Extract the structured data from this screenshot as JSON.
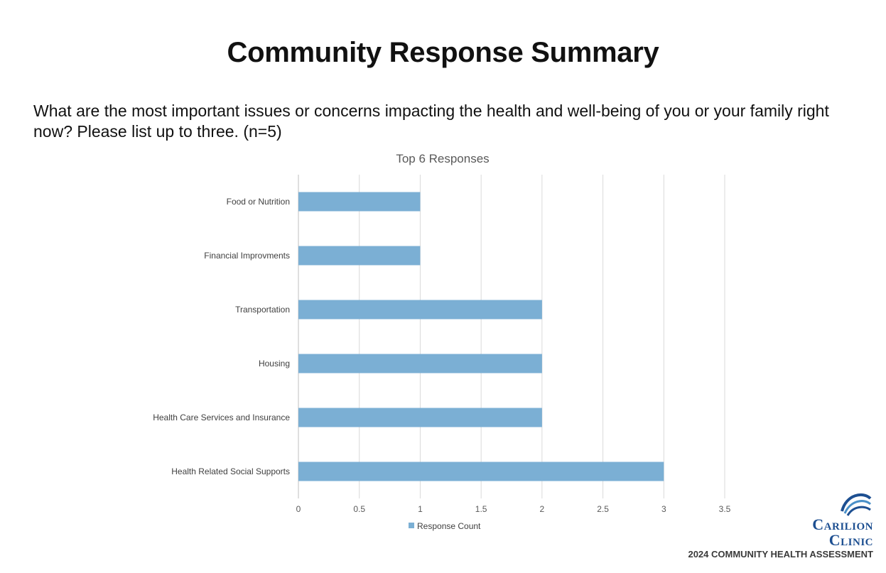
{
  "page": {
    "title": "Community Response Summary",
    "question": "What are the most important issues or concerns impacting the health and well-being of you or your family right now? Please list up to three. (n=5)"
  },
  "branding": {
    "logo_line1": "Carilion",
    "logo_line2": "Clinic",
    "tagline": "2024 COMMUNITY HEALTH ASSESSMENT",
    "color": "#1d4f91"
  },
  "chart_data": {
    "type": "bar",
    "orientation": "horizontal",
    "title": "Top 6 Responses",
    "categories": [
      "Food or Nutrition",
      "Financial Improvments",
      "Transportation",
      "Housing",
      "Health Care Services and Insurance",
      "Health Related Social Supports"
    ],
    "series": [
      {
        "name": "Response Count",
        "values": [
          1,
          1,
          2,
          2,
          2,
          3
        ],
        "color": "#7bafd4"
      }
    ],
    "xlim": [
      0,
      3.5
    ],
    "ticks": [
      "0",
      "0.5",
      "1",
      "1.5",
      "2",
      "2.5",
      "3",
      "3.5"
    ],
    "tick_values": [
      0,
      0.5,
      1,
      1.5,
      2,
      2.5,
      3,
      3.5
    ],
    "grid": true,
    "legend": "bottom"
  }
}
